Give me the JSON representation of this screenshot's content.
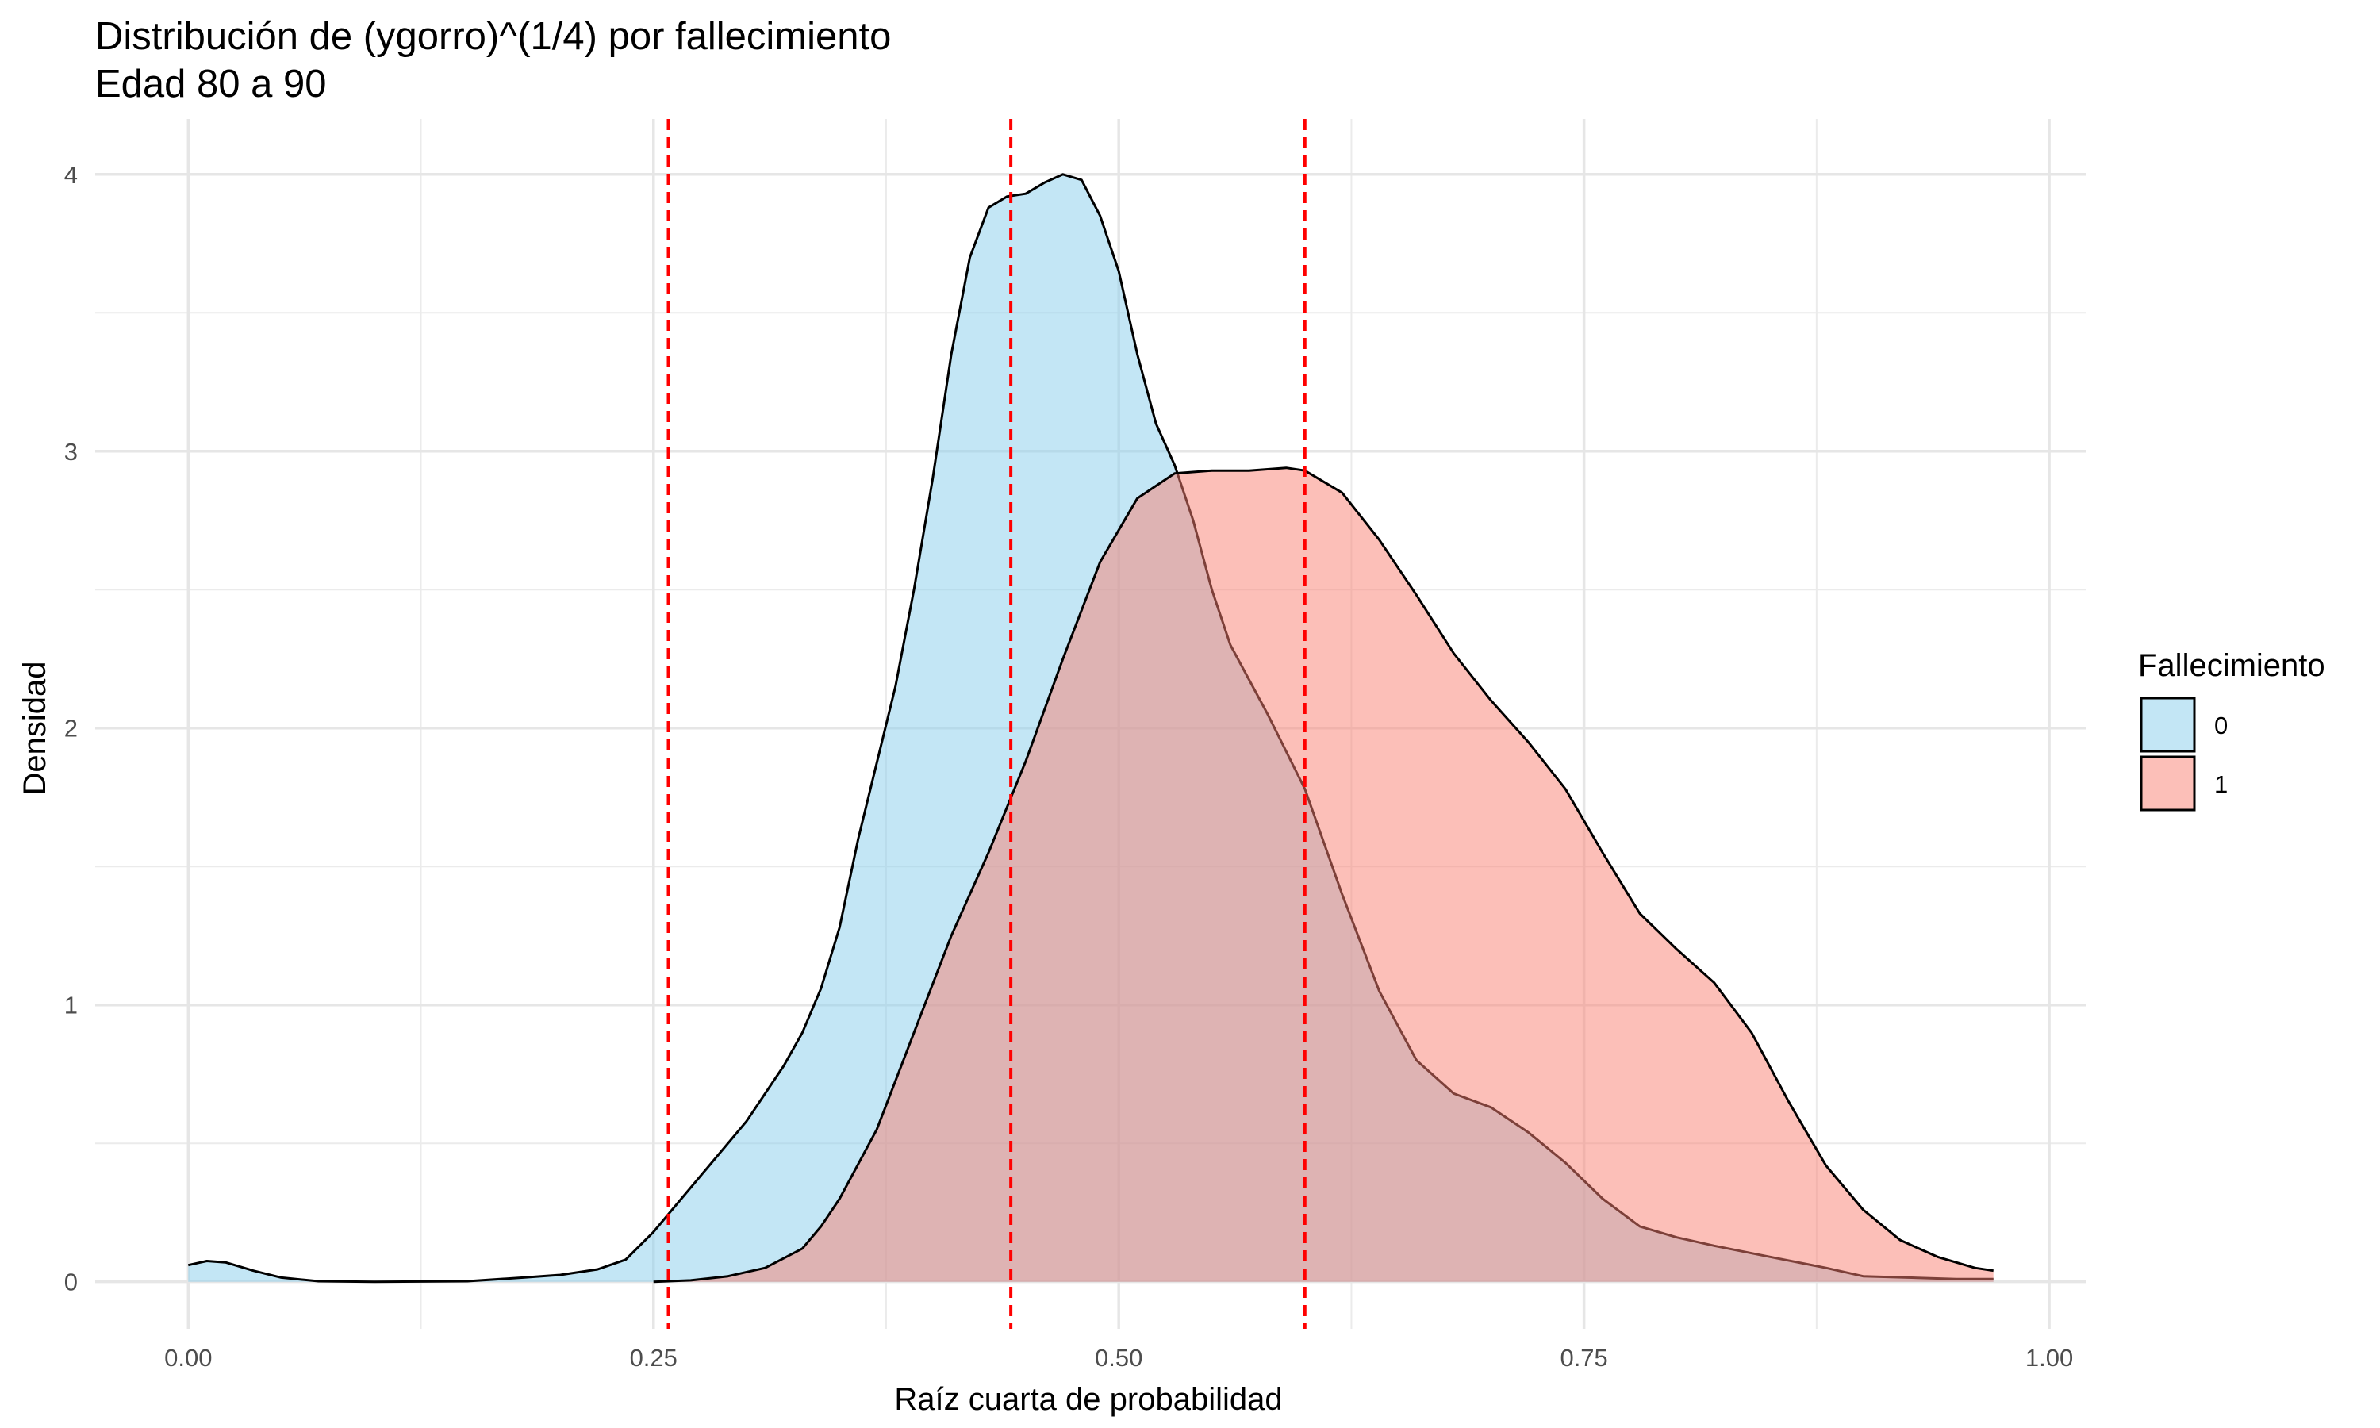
{
  "chart_data": {
    "type": "area",
    "title": "Distribución de (ygorro)^(1/4) por fallecimiento",
    "subtitle": "Edad 80 a 90",
    "xlabel": "Raíz cuarta de probabilidad",
    "ylabel": "Densidad",
    "xlim": [
      -0.05,
      1.02
    ],
    "ylim": [
      -0.17,
      4.2
    ],
    "x_ticks": [
      0.0,
      0.25,
      0.5,
      0.75,
      1.0
    ],
    "x_tick_labels": [
      "0.00",
      "0.25",
      "0.50",
      "0.75",
      "1.00"
    ],
    "y_ticks": [
      0,
      1,
      2,
      3,
      4
    ],
    "y_tick_labels": [
      "0",
      "1",
      "2",
      "3",
      "4"
    ],
    "grid": true,
    "legend": {
      "title": "Fallecimiento",
      "position": "right",
      "entries": [
        {
          "label": "0",
          "color": "#87ceeb"
        },
        {
          "label": "1",
          "color": "#fa8072"
        }
      ]
    },
    "series": [
      {
        "name": "0",
        "fill": "#87ceeb",
        "points": [
          [
            0.0,
            0.06
          ],
          [
            0.01,
            0.075
          ],
          [
            0.02,
            0.07
          ],
          [
            0.035,
            0.04
          ],
          [
            0.05,
            0.015
          ],
          [
            0.07,
            0.002
          ],
          [
            0.1,
            0.0
          ],
          [
            0.15,
            0.002
          ],
          [
            0.18,
            0.015
          ],
          [
            0.2,
            0.025
          ],
          [
            0.22,
            0.045
          ],
          [
            0.235,
            0.08
          ],
          [
            0.25,
            0.18
          ],
          [
            0.26,
            0.26
          ],
          [
            0.28,
            0.42
          ],
          [
            0.3,
            0.58
          ],
          [
            0.32,
            0.78
          ],
          [
            0.33,
            0.9
          ],
          [
            0.34,
            1.06
          ],
          [
            0.35,
            1.28
          ],
          [
            0.36,
            1.6
          ],
          [
            0.38,
            2.15
          ],
          [
            0.39,
            2.5
          ],
          [
            0.4,
            2.9
          ],
          [
            0.41,
            3.35
          ],
          [
            0.42,
            3.7
          ],
          [
            0.43,
            3.88
          ],
          [
            0.44,
            3.92
          ],
          [
            0.45,
            3.93
          ],
          [
            0.46,
            3.97
          ],
          [
            0.47,
            4.0
          ],
          [
            0.48,
            3.98
          ],
          [
            0.49,
            3.85
          ],
          [
            0.5,
            3.65
          ],
          [
            0.51,
            3.35
          ],
          [
            0.52,
            3.1
          ],
          [
            0.53,
            2.95
          ],
          [
            0.54,
            2.75
          ],
          [
            0.55,
            2.5
          ],
          [
            0.56,
            2.3
          ],
          [
            0.58,
            2.05
          ],
          [
            0.6,
            1.78
          ],
          [
            0.62,
            1.4
          ],
          [
            0.64,
            1.05
          ],
          [
            0.66,
            0.8
          ],
          [
            0.68,
            0.68
          ],
          [
            0.7,
            0.63
          ],
          [
            0.72,
            0.54
          ],
          [
            0.74,
            0.43
          ],
          [
            0.76,
            0.3
          ],
          [
            0.78,
            0.2
          ],
          [
            0.8,
            0.16
          ],
          [
            0.82,
            0.13
          ],
          [
            0.85,
            0.09
          ],
          [
            0.88,
            0.05
          ],
          [
            0.9,
            0.02
          ],
          [
            0.95,
            0.01
          ],
          [
            0.97,
            0.01
          ]
        ]
      },
      {
        "name": "1",
        "fill": "#fa8072",
        "points": [
          [
            0.25,
            0.0
          ],
          [
            0.27,
            0.005
          ],
          [
            0.29,
            0.02
          ],
          [
            0.31,
            0.05
          ],
          [
            0.33,
            0.12
          ],
          [
            0.34,
            0.2
          ],
          [
            0.35,
            0.3
          ],
          [
            0.37,
            0.55
          ],
          [
            0.39,
            0.9
          ],
          [
            0.41,
            1.25
          ],
          [
            0.43,
            1.55
          ],
          [
            0.45,
            1.88
          ],
          [
            0.47,
            2.25
          ],
          [
            0.49,
            2.6
          ],
          [
            0.51,
            2.83
          ],
          [
            0.53,
            2.92
          ],
          [
            0.55,
            2.93
          ],
          [
            0.57,
            2.93
          ],
          [
            0.59,
            2.94
          ],
          [
            0.6,
            2.93
          ],
          [
            0.62,
            2.85
          ],
          [
            0.64,
            2.68
          ],
          [
            0.66,
            2.48
          ],
          [
            0.68,
            2.27
          ],
          [
            0.7,
            2.1
          ],
          [
            0.72,
            1.95
          ],
          [
            0.74,
            1.78
          ],
          [
            0.76,
            1.55
          ],
          [
            0.78,
            1.33
          ],
          [
            0.8,
            1.2
          ],
          [
            0.82,
            1.08
          ],
          [
            0.84,
            0.9
          ],
          [
            0.86,
            0.65
          ],
          [
            0.88,
            0.42
          ],
          [
            0.9,
            0.26
          ],
          [
            0.92,
            0.15
          ],
          [
            0.94,
            0.09
          ],
          [
            0.96,
            0.05
          ],
          [
            0.97,
            0.04
          ]
        ]
      }
    ],
    "vlines": [
      {
        "x": 0.258,
        "color": "#ff0000",
        "style": "dashed"
      },
      {
        "x": 0.442,
        "color": "#ff0000",
        "style": "dashed"
      },
      {
        "x": 0.6,
        "color": "#ff0000",
        "style": "dashed"
      }
    ]
  }
}
